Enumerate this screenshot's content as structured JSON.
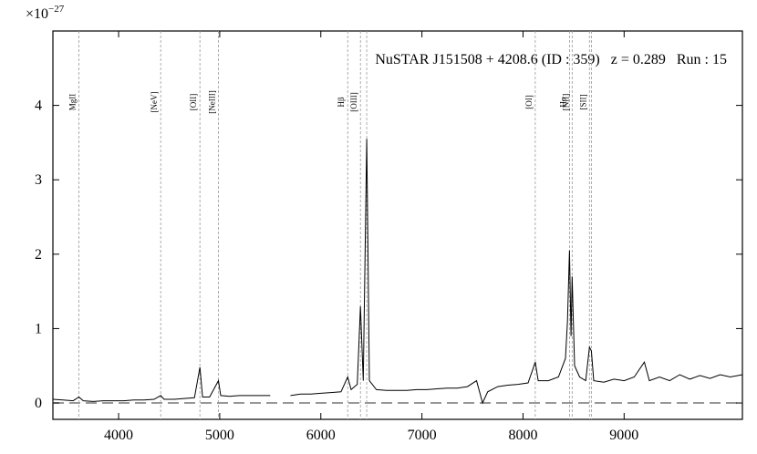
{
  "chart_data": {
    "type": "line",
    "title": "NuSTAR J151508 + 4208.6 (ID : 359)   z = 0.289   Run : 15",
    "scale_label": {
      "base": "×10",
      "exponent": "−27"
    },
    "x": [
      3350,
      3450,
      3550,
      3607,
      3650,
      3750,
      3850,
      3950,
      4050,
      4150,
      4250,
      4350,
      4416,
      4450,
      4550,
      4650,
      4750,
      4804,
      4830,
      4900,
      4987,
      5010,
      5100,
      5200,
      5300,
      5400,
      5500,
      5600,
      5700,
      5800,
      5900,
      6000,
      6100,
      6200,
      6266,
      6300,
      6360,
      6392,
      6420,
      6454,
      6480,
      6550,
      6650,
      6750,
      6850,
      6950,
      7050,
      7150,
      7250,
      7350,
      7450,
      7540,
      7600,
      7650,
      7750,
      7850,
      7950,
      8050,
      8121,
      8150,
      8250,
      8350,
      8420,
      8440,
      8460,
      8475,
      8486,
      8510,
      8560,
      8620,
      8657,
      8676,
      8700,
      8800,
      8900,
      9000,
      9100,
      9200,
      9250,
      9350,
      9450,
      9550,
      9650,
      9750,
      9850,
      9950,
      10050,
      10170
    ],
    "series": [
      {
        "color": "#000000",
        "values": [
          0.05,
          0.04,
          0.03,
          0.08,
          0.03,
          0.02,
          0.03,
          0.03,
          0.03,
          0.04,
          0.04,
          0.05,
          0.1,
          0.05,
          0.05,
          0.06,
          0.07,
          0.48,
          0.08,
          0.08,
          0.3,
          0.1,
          0.09,
          0.1,
          0.1,
          0.1,
          0.1,
          null,
          0.1,
          0.12,
          0.12,
          0.13,
          0.14,
          0.15,
          0.35,
          0.18,
          0.25,
          1.3,
          0.3,
          3.55,
          0.3,
          0.18,
          0.17,
          0.17,
          0.17,
          0.18,
          0.18,
          0.19,
          0.2,
          0.2,
          0.22,
          0.3,
          0.0,
          0.15,
          0.22,
          0.24,
          0.25,
          0.27,
          0.55,
          0.3,
          0.3,
          0.35,
          0.6,
          1.1,
          2.05,
          0.9,
          1.7,
          0.5,
          0.35,
          0.3,
          0.75,
          0.7,
          0.3,
          0.28,
          0.32,
          0.3,
          0.35,
          0.55,
          0.3,
          0.35,
          0.3,
          0.38,
          0.32,
          0.37,
          0.33,
          0.38,
          0.35,
          0.38
        ]
      }
    ],
    "lines": [
      {
        "label": "MgII",
        "x": [
          3607
        ]
      },
      {
        "label": "[NeV]",
        "x": [
          4416
        ]
      },
      {
        "label": "[OII]",
        "x": [
          4804
        ]
      },
      {
        "label": "[NeIII]",
        "x": [
          4987
        ]
      },
      {
        "label": "Hβ",
        "x": [
          6266
        ]
      },
      {
        "label": "[OIII]",
        "x": [
          6392,
          6454
        ]
      },
      {
        "label": "[OI]",
        "x": [
          8121
        ]
      },
      {
        "label": "Hα",
        "x": [
          8460
        ]
      },
      {
        "label": "[NII]",
        "x": [
          8486
        ]
      },
      {
        "label": "[SII]",
        "x": [
          8657,
          8676
        ]
      }
    ],
    "xlim": [
      3350,
      10170
    ],
    "ylim": [
      -0.22,
      5
    ],
    "xticks": [
      4000,
      5000,
      6000,
      7000,
      8000,
      9000
    ],
    "yticks": [
      0,
      1,
      2,
      3,
      4
    ]
  }
}
